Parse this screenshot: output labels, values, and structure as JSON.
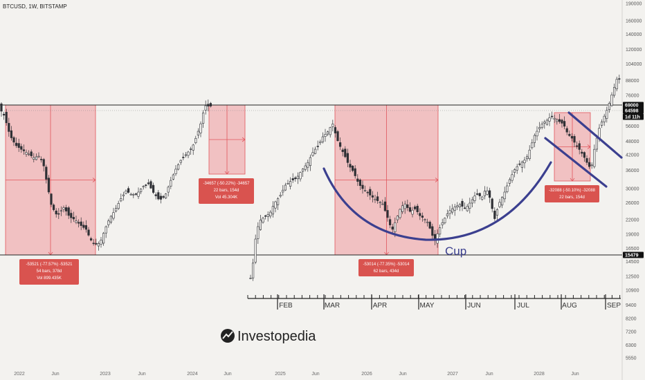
{
  "chart_data": {
    "type": "candlestick",
    "title": "BTCUSD, 1W, BITSTAMP",
    "y_scale": "log",
    "y_ticks": [
      "190000",
      "160000",
      "140000",
      "120000",
      "104000",
      "88000",
      "76000",
      "69000",
      "64598",
      "56000",
      "48000",
      "42000",
      "36000",
      "30000",
      "26000",
      "22000",
      "19000",
      "16500",
      "15479",
      "14500",
      "12500",
      "10900",
      "9400",
      "8200",
      "7200",
      "6300",
      "5550"
    ],
    "price_tags": [
      {
        "value": "69000",
        "color": "#111111"
      },
      {
        "value": "64598",
        "color": "#111111"
      },
      {
        "value": "1d 11h",
        "color": "#111111"
      },
      {
        "value": "15479",
        "color": "#111111"
      }
    ],
    "x_ticks": [
      "2022",
      "Jun",
      "2023",
      "Jun",
      "2024",
      "Jun",
      "2025",
      "Jun",
      "2026",
      "Jun",
      "2027",
      "Jun",
      "2028",
      "Jun"
    ],
    "zoom_ticks": [
      "FEB",
      "MAR",
      "APR",
      "MAY",
      "JUN",
      "JUL",
      "AUG",
      "SEP"
    ],
    "levels": {
      "top": 69000,
      "bottom": 15479
    },
    "measures": [
      {
        "lines": [
          "-53521 (-77.57%) -53521",
          "54 bars, 378d",
          "Vol 899.435K"
        ]
      },
      {
        "lines": [
          "-34657 (-50.22%) -34657",
          "22 bars, 154d",
          "Vol 45.304K"
        ]
      },
      {
        "lines": [
          "-53014 (-77.35%) -53014",
          "62 bars, 434d"
        ]
      },
      {
        "lines": [
          "-32088 (-50.10%) -32088",
          "22 bars, 154d"
        ]
      }
    ],
    "pattern_label": "Cup",
    "colors": {
      "up": "#2f3035",
      "down": "#2f3035",
      "measure_fill": "#f0a0a4",
      "measure_line": "#e0545b",
      "measure_label": "#d9534f",
      "cup_curve": "#3b3f8f",
      "background": "#f3f2ef"
    }
  },
  "watermark": {
    "text": "Investopedia",
    "icon": "investopedia-logo"
  }
}
